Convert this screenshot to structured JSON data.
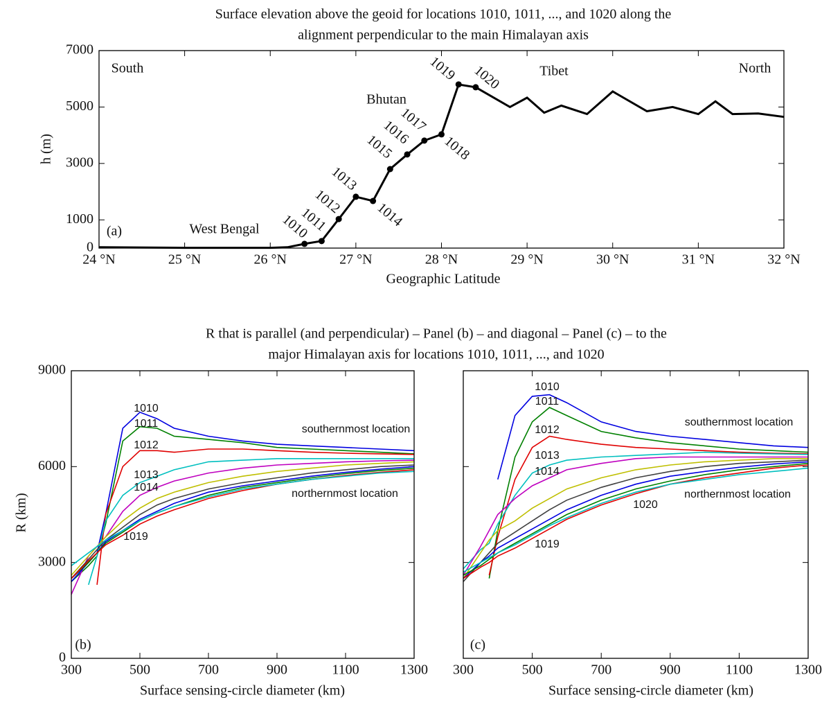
{
  "chart_data": [
    {
      "type": "line",
      "title": [
        "Surface elevation above the geoid for locations 1010, 1011, ..., and 1020 along the",
        "alignment perpendicular to the main Himalayan axis"
      ],
      "xlabel": "Geographic Latitude",
      "ylabel": "h (m)",
      "xlim": [
        24,
        32
      ],
      "ylim": [
        0,
        7000
      ],
      "xticks": [
        {
          "value": 24,
          "label": "24 °N"
        },
        {
          "value": 25,
          "label": "25 °N"
        },
        {
          "value": 26,
          "label": "26 °N"
        },
        {
          "value": 27,
          "label": "27 °N"
        },
        {
          "value": 28,
          "label": "28 °N"
        },
        {
          "value": 29,
          "label": "29 °N"
        },
        {
          "value": 30,
          "label": "30 °N"
        },
        {
          "value": 31,
          "label": "31 °N"
        },
        {
          "value": 32,
          "label": "32 °N"
        }
      ],
      "yticks": [
        0,
        1000,
        3000,
        5000,
        7000
      ],
      "x": [
        24.0,
        25.0,
        26.0,
        26.2,
        26.4,
        26.6,
        26.8,
        27.0,
        27.2,
        27.4,
        27.6,
        27.8,
        28.0,
        28.2,
        28.4,
        28.8,
        29.0,
        29.2,
        29.4,
        29.7,
        30.0,
        30.4,
        30.7,
        31.0,
        31.2,
        31.4,
        31.7,
        32.0
      ],
      "series": [
        {
          "color": "#000000",
          "values": [
            30,
            10,
            10,
            30,
            150,
            250,
            1030,
            1820,
            1670,
            2800,
            3320,
            3810,
            4030,
            5800,
            5700,
            5000,
            5330,
            4800,
            5050,
            4750,
            5550,
            4850,
            5000,
            4750,
            5200,
            4750,
            4770,
            4650
          ]
        }
      ],
      "markers": {
        "labels": [
          "1010",
          "1011",
          "1012",
          "1013",
          "1014",
          "1015",
          "1016",
          "1017",
          "1018",
          "1019",
          "1020"
        ],
        "x": [
          26.4,
          26.6,
          26.8,
          27.0,
          27.2,
          27.4,
          27.6,
          27.8,
          28.0,
          28.2,
          28.4
        ],
        "values": [
          150,
          250,
          1030,
          1820,
          1670,
          2800,
          3320,
          3810,
          4030,
          5800,
          5700
        ]
      },
      "annotations": [
        "South",
        "North",
        "Tibet",
        "Bhutan",
        "West Bengal",
        "(a)"
      ]
    },
    {
      "type": "line",
      "title": [
        "R that is parallel (and perpendicular) – Panel (b) – and diagonal – Panel (c) – to the",
        "major Himalayan axis for locations 1010, 1011, ..., and 1020"
      ],
      "xlabel": "Surface sensing-circle diameter (km)",
      "ylabel": "R  (km)",
      "xlim": [
        300,
        1300
      ],
      "ylim": [
        0,
        9000
      ],
      "xticks": [
        300,
        500,
        700,
        900,
        1100,
        1300
      ],
      "yticks": [
        0,
        3000,
        6000,
        9000
      ],
      "x": [
        300,
        350,
        375,
        400,
        450,
        500,
        550,
        600,
        700,
        800,
        900,
        1000,
        1100,
        1200,
        1300
      ],
      "series": [
        {
          "color": "#0000e0",
          "values": [
            2500,
            3000,
            3300,
            4500,
            7200,
            7700,
            7500,
            7200,
            6950,
            6800,
            6700,
            6650,
            6600,
            6550,
            6500
          ]
        },
        {
          "color": "#008000",
          "values": [
            2400,
            2900,
            3200,
            4200,
            6800,
            7250,
            7200,
            6950,
            6850,
            6750,
            6600,
            6550,
            6500,
            6450,
            6400
          ]
        },
        {
          "color": "#e00000",
          "values": [
            null,
            null,
            2300,
            4500,
            6000,
            6500,
            6500,
            6450,
            6550,
            6550,
            6500,
            6450,
            6420,
            6400,
            6380
          ]
        },
        {
          "color": "#00bfbf",
          "values": [
            null,
            2300,
            3200,
            4300,
            5100,
            5500,
            5700,
            5900,
            6150,
            6200,
            6250,
            6250,
            6250,
            6250,
            6250
          ]
        },
        {
          "color": "#bf00bf",
          "values": [
            2000,
            3200,
            3500,
            3800,
            4600,
            5100,
            5350,
            5550,
            5800,
            5950,
            6050,
            6100,
            6150,
            6180,
            6200
          ]
        },
        {
          "color": "#bfbf00",
          "values": [
            2600,
            3200,
            3500,
            3800,
            4300,
            4700,
            5000,
            5200,
            5500,
            5700,
            5850,
            5950,
            6050,
            6100,
            6150
          ]
        },
        {
          "color": "#404040",
          "values": [
            2500,
            3100,
            3400,
            3700,
            4100,
            4500,
            4800,
            5000,
            5300,
            5500,
            5650,
            5800,
            5900,
            6000,
            6050
          ]
        },
        {
          "color": "#0000e0",
          "values": [
            2400,
            3000,
            3300,
            3650,
            4000,
            4350,
            4600,
            4850,
            5200,
            5400,
            5550,
            5700,
            5820,
            5920,
            6000
          ]
        },
        {
          "color": "#008000",
          "values": [
            2500,
            3000,
            3300,
            3600,
            3950,
            4300,
            4550,
            4750,
            5100,
            5350,
            5500,
            5650,
            5780,
            5880,
            5950
          ]
        },
        {
          "color": "#e00000",
          "values": [
            2500,
            3050,
            3300,
            3550,
            3850,
            4200,
            4450,
            4650,
            5000,
            5250,
            5450,
            5600,
            5720,
            5820,
            5900
          ]
        },
        {
          "color": "#00bfbf",
          "values": [
            2900,
            3300,
            3500,
            3700,
            4000,
            4300,
            4550,
            4750,
            5050,
            5300,
            5450,
            5600,
            5700,
            5800,
            5850
          ]
        }
      ],
      "annotations": [
        "1010",
        "1011",
        "1012",
        "1013",
        "1014",
        "1019",
        "southernmost location",
        "northernmost location",
        "(b)"
      ]
    },
    {
      "type": "line",
      "xlabel": "Surface sensing-circle diameter (km)",
      "xlim": [
        300,
        1300
      ],
      "ylim": [
        0,
        9000
      ],
      "xticks": [
        300,
        500,
        700,
        900,
        1100,
        1300
      ],
      "yticks": [
        0,
        3000,
        6000,
        9000
      ],
      "x": [
        300,
        350,
        375,
        400,
        450,
        500,
        550,
        600,
        700,
        800,
        900,
        1000,
        1100,
        1200,
        1300
      ],
      "series": [
        {
          "color": "#0000e0",
          "values": [
            null,
            null,
            null,
            5600,
            7600,
            8200,
            8250,
            8000,
            7400,
            7100,
            6950,
            6850,
            6750,
            6650,
            6600
          ]
        },
        {
          "color": "#008000",
          "values": [
            null,
            null,
            2500,
            4000,
            6300,
            7400,
            7850,
            7600,
            7100,
            6900,
            6750,
            6650,
            6550,
            6500,
            6450
          ]
        },
        {
          "color": "#e00000",
          "values": [
            null,
            null,
            2600,
            3800,
            5600,
            6600,
            6950,
            6850,
            6700,
            6600,
            6550,
            6500,
            6450,
            6420,
            6400
          ]
        },
        {
          "color": "#00bfbf",
          "values": [
            2800,
            3400,
            3600,
            4200,
            5100,
            5800,
            6050,
            6200,
            6300,
            6350,
            6400,
            6450,
            6420,
            6400,
            6380
          ]
        },
        {
          "color": "#bf00bf",
          "values": [
            2600,
            3500,
            4000,
            4500,
            5000,
            5400,
            5650,
            5900,
            6100,
            6250,
            6300,
            6300,
            6300,
            6300,
            6300
          ]
        },
        {
          "color": "#bfbf00",
          "values": [
            2500,
            3300,
            3700,
            4000,
            4300,
            4700,
            5000,
            5300,
            5650,
            5900,
            6050,
            6150,
            6200,
            6250,
            6250
          ]
        },
        {
          "color": "#404040",
          "values": [
            2400,
            3000,
            3300,
            3600,
            3950,
            4300,
            4650,
            4950,
            5350,
            5650,
            5850,
            6000,
            6100,
            6150,
            6200
          ]
        },
        {
          "color": "#0000e0",
          "values": [
            2500,
            3000,
            3200,
            3450,
            3750,
            4050,
            4350,
            4650,
            5100,
            5450,
            5700,
            5850,
            5980,
            6080,
            6150
          ]
        },
        {
          "color": "#008000",
          "values": [
            2600,
            2900,
            3100,
            3300,
            3600,
            3900,
            4200,
            4500,
            4950,
            5300,
            5550,
            5750,
            5900,
            6000,
            6100
          ]
        },
        {
          "color": "#e00000",
          "values": [
            2500,
            2850,
            3000,
            3200,
            3450,
            3750,
            4050,
            4350,
            4800,
            5150,
            5450,
            5650,
            5800,
            5950,
            6050
          ]
        },
        {
          "color": "#00bfbf",
          "values": [
            2700,
            3000,
            3150,
            3300,
            3550,
            3850,
            4150,
            4400,
            4850,
            5200,
            5450,
            5600,
            5750,
            5850,
            5950
          ]
        }
      ],
      "annotations": [
        "1010",
        "1011",
        "1012",
        "1013",
        "1014",
        "1020",
        "1019",
        "southernmost location",
        "northernmost location",
        "(c)"
      ]
    }
  ]
}
